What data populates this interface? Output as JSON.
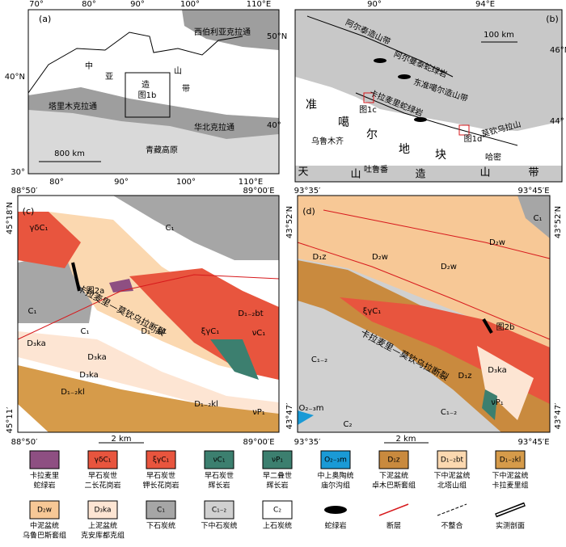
{
  "panels": [
    {
      "texts": [
        "(a)",
        "西伯利亚克拉通",
        "中",
        "亚",
        "造",
        "山",
        "带",
        "图1b",
        "塔里木克拉通",
        "华北克拉通",
        "青藏高原",
        "800 km"
      ],
      "top_ticks": [
        "70°",
        "80°",
        "90°",
        "100°",
        "110°E"
      ],
      "bottom_ticks": [
        "80°",
        "90°",
        "100°",
        "110°E"
      ],
      "left_ticks": [
        "40°N",
        "30°"
      ],
      "right_ticks": [
        "50°N",
        "40°"
      ]
    },
    {
      "texts": [
        "(b)",
        "阿尔泰造山带",
        "阿尔曼泰蛇绿岩",
        "100 km",
        "东准噶尔造山带",
        "卡拉麦里蛇绿岩",
        "图1c",
        "图1d",
        "莫钦乌拉山",
        "准",
        "噶",
        "尔",
        "地",
        "块",
        "乌鲁木齐",
        "吐鲁番",
        "哈密",
        "天",
        "山",
        "造",
        "山",
        "带"
      ],
      "top_ticks": [
        "90°",
        "94°E"
      ],
      "right_ticks": [
        "46°N",
        "44°"
      ]
    },
    {
      "texts": [
        "(c)",
        "γδC₁",
        "C₁",
        "C₁",
        "图2a",
        "卡拉麦里—莫钦乌拉断裂",
        "C₁",
        "D₁₋₂bt",
        "ξγC₁",
        "D₁₋₂bt",
        "νC₁",
        "D₃ka",
        "D₃ka",
        "D₃ka",
        "D₁₋₂kl",
        "D₁₋₂kl",
        "νP₁",
        "2 km"
      ],
      "top_ticks": [
        "88°50′",
        "89°00′E"
      ],
      "bottom_ticks": [
        "88°50′",
        "89°00′E"
      ],
      "left_ticks": [
        "45°18′N",
        "45°11′"
      ]
    },
    {
      "texts": [
        "(d)",
        "C₁",
        "D₂w",
        "D₁z",
        "D₂w",
        "D₂w",
        "ξγC₁",
        "图2b",
        "卡拉麦里—莫钦乌拉断裂",
        "C₁₋₂",
        "D₁z",
        "D₃ka",
        "νP₁",
        "O₂₋₃m",
        "C₂",
        "2 km",
        "C₁₋₂"
      ],
      "top_ticks": [
        "93°35′",
        "93°45′E"
      ],
      "bottom_ticks": [
        "93°35′",
        "93°45′E"
      ],
      "left_ticks": [
        "43°52′N",
        "43°47′"
      ],
      "right_ticks": [
        "43°52′N",
        "43°47′"
      ]
    }
  ],
  "legend": [
    {
      "color": "#8e4f82",
      "lines": [
        "卡拉麦里",
        "蛇绿岩"
      ]
    },
    {
      "color": "#e8553e",
      "symbol": "γδC₁",
      "lines": [
        "早石炭世",
        "二长花岗岩"
      ]
    },
    {
      "color": "#e8553e",
      "symbol": "ξγC₁",
      "lines": [
        "早石炭世",
        "钾长花岗岩"
      ]
    },
    {
      "color": "#3c7f6f",
      "symbol": "νC₁",
      "lines": [
        "早石炭世",
        "辉长岩"
      ]
    },
    {
      "color": "#3c7f6f",
      "symbol": "νP₁",
      "lines": [
        "早二叠世",
        "辉长岩"
      ]
    },
    {
      "color": "#1a9ad6",
      "symbol": "O₂₋₃m",
      "lines": [
        "中上奥陶统",
        "庙尔沟组"
      ]
    },
    {
      "color": "#c98a3e",
      "symbol": "D₁z",
      "lines": [
        "下泥盆统",
        "卓木巴斯套组"
      ]
    },
    {
      "color": "#fbd8b0",
      "symbol": "D₁₋₂bt",
      "lines": [
        "下中泥盆统",
        "北塔山组"
      ]
    },
    {
      "color": "#d69b4a",
      "symbol": "D₁₋₂kl",
      "lines": [
        "下中泥盆统",
        "卡拉麦里组"
      ]
    },
    {
      "color": "#f7c896",
      "symbol": "D₂w",
      "lines": [
        "中泥盆统",
        "乌鲁巴斯套组"
      ]
    },
    {
      "color": "#fde5d3",
      "symbol": "D₃ka",
      "lines": [
        "上泥盆统",
        "克安库都克组"
      ]
    },
    {
      "color": "#a6a6a6",
      "symbol": "C₁",
      "lines": [
        "下石炭统"
      ]
    },
    {
      "color": "#d0d0d0",
      "symbol": "C₁₋₂",
      "lines": [
        "下中石炭统"
      ]
    },
    {
      "color": "#ffffff",
      "symbol": "C₂",
      "lines": [
        "上石炭统"
      ]
    },
    {
      "color": "#000000",
      "lines": [
        "蛇绿岩"
      ]
    },
    {
      "color": "#d7191c",
      "lines": [
        "断层"
      ]
    },
    {
      "color": "#000000",
      "lines": [
        "不整合"
      ]
    },
    {
      "color": "#000000",
      "lines": [
        "实测剖面"
      ]
    }
  ]
}
